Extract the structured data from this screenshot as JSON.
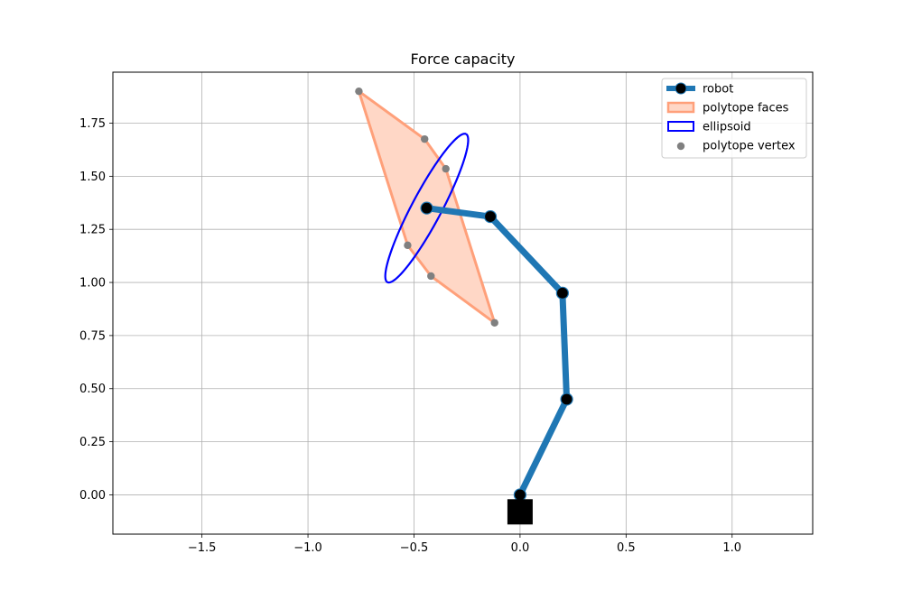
{
  "chart_data": {
    "type": "line",
    "title": "Force capacity",
    "xlabel": "",
    "ylabel": "",
    "xlim": [
      -1.92,
      1.38
    ],
    "ylim": [
      -0.185,
      1.99
    ],
    "x_ticks": [
      -1.5,
      -1.0,
      -0.5,
      0.0,
      0.5,
      1.0
    ],
    "x_tick_labels": [
      "−1.5",
      "−1.0",
      "−0.5",
      "0.0",
      "0.5",
      "1.0"
    ],
    "y_ticks": [
      0.0,
      0.25,
      0.5,
      0.75,
      1.0,
      1.25,
      1.5,
      1.75
    ],
    "y_tick_labels": [
      "0.00",
      "0.25",
      "0.50",
      "0.75",
      "1.00",
      "1.25",
      "1.50",
      "1.75"
    ],
    "grid": true,
    "legend_position": "top-right",
    "base": {
      "x": 0.0,
      "y": -0.08
    },
    "series": [
      {
        "name": "robot",
        "kind": "line-markers",
        "color": "#1f77b4",
        "marker_color": "#000000",
        "points": [
          [
            0.0,
            0.0
          ],
          [
            0.22,
            0.45
          ],
          [
            0.2,
            0.95
          ],
          [
            -0.14,
            1.31
          ],
          [
            -0.44,
            1.35
          ]
        ]
      },
      {
        "name": "polytope faces",
        "kind": "polygon",
        "edge_color": "#ffa07a",
        "fill_color": "#ffd7c6",
        "points": [
          [
            -0.76,
            1.9
          ],
          [
            -0.45,
            1.675
          ],
          [
            -0.35,
            1.535
          ],
          [
            -0.12,
            0.81
          ],
          [
            -0.42,
            1.03
          ],
          [
            -0.53,
            1.175
          ]
        ]
      },
      {
        "name": "ellipsoid",
        "kind": "ellipse",
        "color": "#0000ff",
        "center": [
          -0.44,
          1.35
        ],
        "semi_major": 0.395,
        "semi_minor": 0.07,
        "angle_deg": 62
      },
      {
        "name": "polytope vertex",
        "kind": "scatter",
        "color": "#808080",
        "points": [
          [
            -0.76,
            1.9
          ],
          [
            -0.45,
            1.675
          ],
          [
            -0.35,
            1.535
          ],
          [
            -0.53,
            1.175
          ],
          [
            -0.42,
            1.03
          ],
          [
            -0.12,
            0.81
          ]
        ]
      }
    ]
  }
}
